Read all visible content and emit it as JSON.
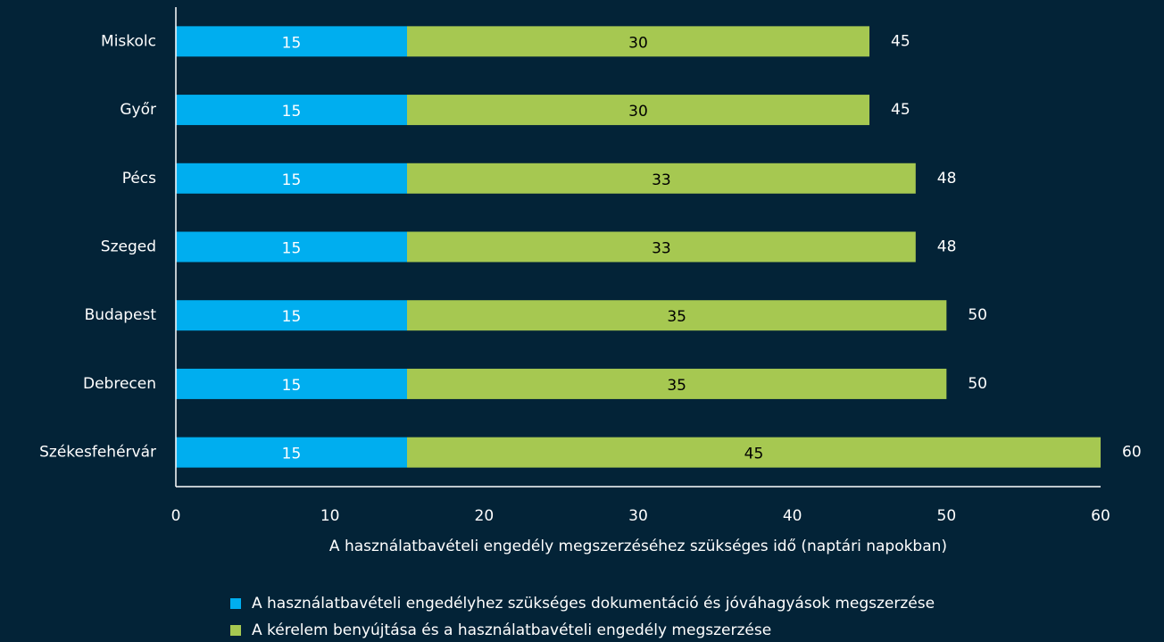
{
  "chart_data": {
    "type": "stacked_barh",
    "categories": [
      "Miskolc",
      "Győr",
      "Pécs",
      "Szeged",
      "Budapest",
      "Debrecen",
      "Székesfehérvár"
    ],
    "series": [
      {
        "name": "A használatbavételi engedélyhez szükséges dokumentáció és jóváhagyások megszerzése",
        "color": "#00aeef",
        "values": [
          15,
          15,
          15,
          15,
          15,
          15,
          15
        ]
      },
      {
        "name": "A kérelem benyújtása és a használatbavételi engedély megszerzése",
        "color": "#a6c851",
        "values": [
          30,
          30,
          33,
          33,
          35,
          35,
          45
        ]
      }
    ],
    "totals": [
      45,
      45,
      48,
      48,
      50,
      50,
      60
    ],
    "x_label": "A használatbavételi engedély megszerzéséhez szükséges idő (naptári napokban)",
    "xlim": [
      0,
      60
    ],
    "xticks": [
      0,
      10,
      20,
      30,
      40,
      50,
      60
    ],
    "grid": false
  }
}
